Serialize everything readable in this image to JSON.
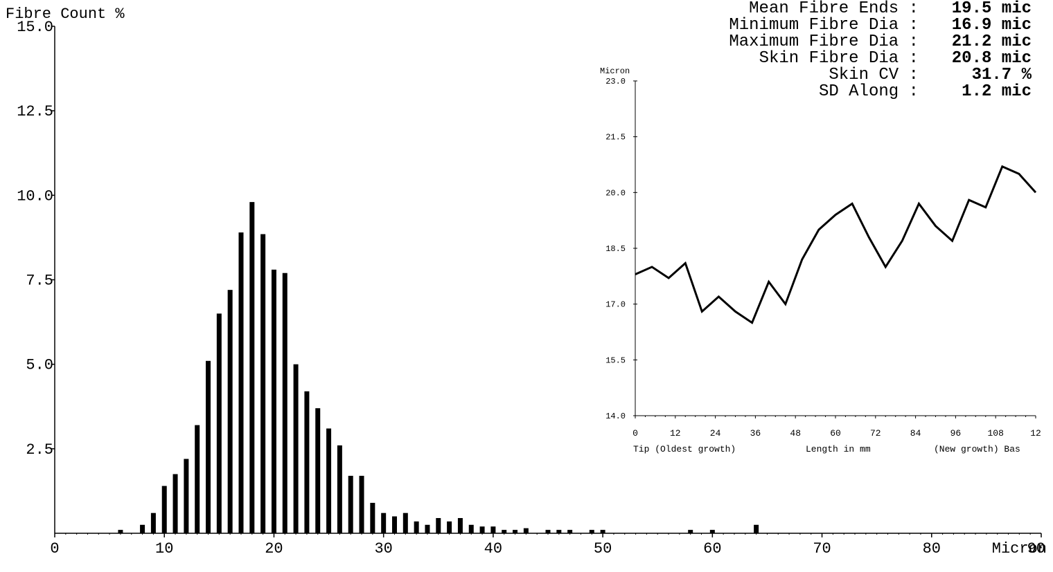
{
  "chart_data": [
    {
      "type": "bar",
      "ylabel": "Fibre Count %",
      "xlabel": "Micron",
      "xlim": [
        0,
        90
      ],
      "ylim": [
        0,
        15
      ],
      "x_ticks": [
        "0",
        "10",
        "20",
        "30",
        "40",
        "50",
        "60",
        "70",
        "80",
        "90"
      ],
      "y_ticks": [
        "15.0",
        "12.5",
        "10.0",
        "7.5",
        "5.0",
        "2.5"
      ],
      "x": [
        1,
        2,
        3,
        4,
        5,
        6,
        7,
        8,
        9,
        10,
        11,
        12,
        13,
        14,
        15,
        16,
        17,
        18,
        19,
        20,
        21,
        22,
        23,
        24,
        25,
        26,
        27,
        28,
        29,
        30,
        31,
        32,
        33,
        34,
        35,
        36,
        37,
        38,
        39,
        40,
        41,
        42,
        43,
        44,
        45,
        46,
        47,
        48,
        49,
        50,
        51,
        52,
        53,
        54,
        55,
        56,
        57,
        58,
        59,
        60,
        61,
        62,
        63,
        64
      ],
      "values": [
        0,
        0,
        0,
        0,
        0,
        0.1,
        0,
        0.25,
        0.6,
        1.4,
        1.75,
        2.2,
        3.2,
        5.1,
        6.5,
        7.2,
        8.9,
        9.8,
        8.85,
        7.8,
        7.7,
        5.0,
        4.2,
        3.7,
        3.1,
        2.6,
        1.7,
        1.7,
        0.9,
        0.6,
        0.5,
        0.6,
        0.35,
        0.25,
        0.45,
        0.35,
        0.45,
        0.25,
        0.2,
        0.2,
        0.1,
        0.1,
        0.15,
        0,
        0.1,
        0.1,
        0.1,
        0,
        0.1,
        0.1,
        0,
        0,
        0,
        0,
        0,
        0,
        0,
        0.1,
        0,
        0.1,
        0,
        0,
        0,
        0.25
      ]
    },
    {
      "type": "line",
      "ylabel": "Micron",
      "xlabel": "Length in mm",
      "xlabel_left": "Tip (Oldest growth)",
      "xlabel_right": "(New growth) Bas",
      "ylim": [
        14.0,
        23.0
      ],
      "y_ticks": [
        "23.0",
        "21.5",
        "20.0",
        "18.5",
        "17.0",
        "15.5",
        "14.0"
      ],
      "x_ticks": [
        "0",
        "12",
        "24",
        "36",
        "48",
        "60",
        "72",
        "84",
        "96",
        "108",
        "12"
      ],
      "x": [
        0,
        5,
        10,
        15,
        20,
        25,
        30,
        35,
        40,
        45,
        50,
        55,
        60,
        65,
        70,
        75,
        80,
        85,
        90,
        95,
        100,
        105,
        110,
        115,
        120
      ],
      "values": [
        17.8,
        18.0,
        17.7,
        18.1,
        16.8,
        17.2,
        16.8,
        16.5,
        17.6,
        17.0,
        18.2,
        19.0,
        19.4,
        19.7,
        18.8,
        18.0,
        18.7,
        19.7,
        19.1,
        18.7,
        19.8,
        19.6,
        20.7,
        20.5,
        20.0
      ]
    }
  ],
  "stats": [
    {
      "label": "Mean Fibre Ends :",
      "value": "19.5 mic"
    },
    {
      "label": "Minimum Fibre Dia :",
      "value": "16.9 mic"
    },
    {
      "label": "Maximum Fibre Dia :",
      "value": "21.2 mic"
    },
    {
      "label": "Skin Fibre Dia :",
      "value": "20.8 mic"
    },
    {
      "label": "Skin CV :",
      "value": "31.7 %"
    },
    {
      "label": "SD Along :",
      "value": "1.2 mic"
    }
  ]
}
